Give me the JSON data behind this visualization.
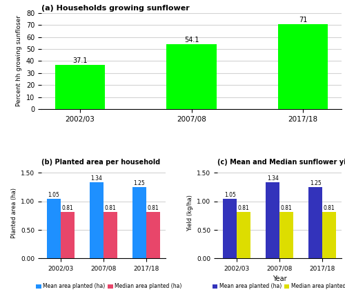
{
  "years": [
    "2002/03",
    "2007/08",
    "2017/18"
  ],
  "hh_sunflower": [
    37.1,
    54.1,
    71
  ],
  "mean_area": [
    1.05,
    1.34,
    1.25
  ],
  "median_area": [
    0.81,
    0.81,
    0.81
  ],
  "mean_yield": [
    1.05,
    1.34,
    1.25
  ],
  "median_yield": [
    0.81,
    0.81,
    0.81
  ],
  "bar_color_a": "#00FF00",
  "bar_color_b_mean": "#1E90FF",
  "bar_color_b_median": "#E8466A",
  "bar_color_c_mean": "#3333BB",
  "bar_color_c_median": "#DDDD00",
  "title_a": "(a) Households growing sunflower",
  "title_b": "(b) Planted area per household",
  "title_c": "(c) Mean and Median sunflower yield",
  "ylabel_a": "Percent hh growing sunfloser",
  "ylabel_b": "Planted area (ha)",
  "ylabel_c": "Yield (kg/ha)",
  "xlabel_c": "Year",
  "ylim_a": [
    0,
    80
  ],
  "yticks_a": [
    0,
    10,
    20,
    30,
    40,
    50,
    60,
    70,
    80
  ],
  "yticks_bc": [
    0.0,
    0.5,
    1.0,
    1.5
  ],
  "legend_b_mean": "Mean area planted (ha)",
  "legend_b_median": "Median area planted (ha)",
  "legend_c_mean": "Mean area planted (ha)",
  "legend_c_median": "Median area planted (ha)"
}
